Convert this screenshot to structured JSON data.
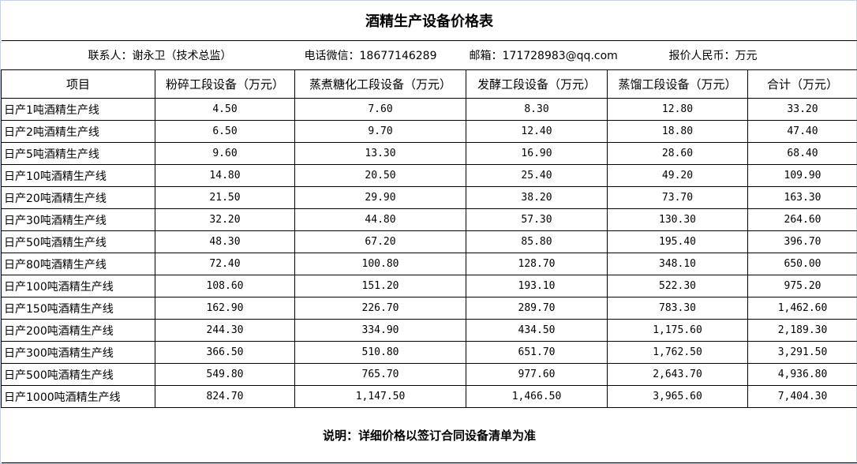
{
  "title": "酒精生产设备价格表",
  "contact": {
    "person": "联系人：谢永卫（技术总监）",
    "phone": "电话微信：18677146289",
    "email": "邮箱：171728983@qq.com",
    "currency": "报价人民币：万元"
  },
  "columns": [
    "项目",
    "粉碎工段设备（万元）",
    "蒸煮糖化工段设备（万元）",
    "发酵工段设备（万元）",
    "蒸馏工段设备（万元）",
    "合计（万元）"
  ],
  "rows": [
    [
      "日产1吨酒精生产线",
      "4.50",
      "7.60",
      "8.30",
      "12.80",
      "33.20"
    ],
    [
      "日产2吨酒精生产线",
      "6.50",
      "9.70",
      "12.40",
      "18.80",
      "47.40"
    ],
    [
      "日产5吨酒精生产线",
      "9.60",
      "13.30",
      "16.90",
      "28.60",
      "68.40"
    ],
    [
      "日产10吨酒精生产线",
      "14.80",
      "20.50",
      "25.40",
      "49.20",
      "109.90"
    ],
    [
      "日产20吨酒精生产线",
      "21.50",
      "29.90",
      "38.20",
      "73.70",
      "163.30"
    ],
    [
      "日产30吨酒精生产线",
      "32.20",
      "44.80",
      "57.30",
      "130.30",
      "264.60"
    ],
    [
      "日产50吨酒精生产线",
      "48.30",
      "67.20",
      "85.80",
      "195.40",
      "396.70"
    ],
    [
      "日产80吨酒精生产线",
      "72.40",
      "100.80",
      "128.70",
      "348.10",
      "650.00"
    ],
    [
      "日产100吨酒精生产线",
      "108.60",
      "151.20",
      "193.10",
      "522.30",
      "975.20"
    ],
    [
      "日产150吨酒精生产线",
      "162.90",
      "226.70",
      "289.70",
      "783.30",
      "1,462.60"
    ],
    [
      "日产200吨酒精生产线",
      "244.30",
      "334.90",
      "434.50",
      "1,175.60",
      "2,189.30"
    ],
    [
      "日产300吨酒精生产线",
      "366.50",
      "510.80",
      "651.70",
      "1,762.50",
      "3,291.50"
    ],
    [
      "日产500吨酒精生产线",
      "549.80",
      "765.70",
      "977.60",
      "2,643.70",
      "4,936.80"
    ],
    [
      "日产1000吨酒精生产线",
      "824.70",
      "1,147.50",
      "1,466.50",
      "3,965.60",
      "7,404.30"
    ]
  ],
  "note": "说明：详细价格以签订合同设备清单为准"
}
